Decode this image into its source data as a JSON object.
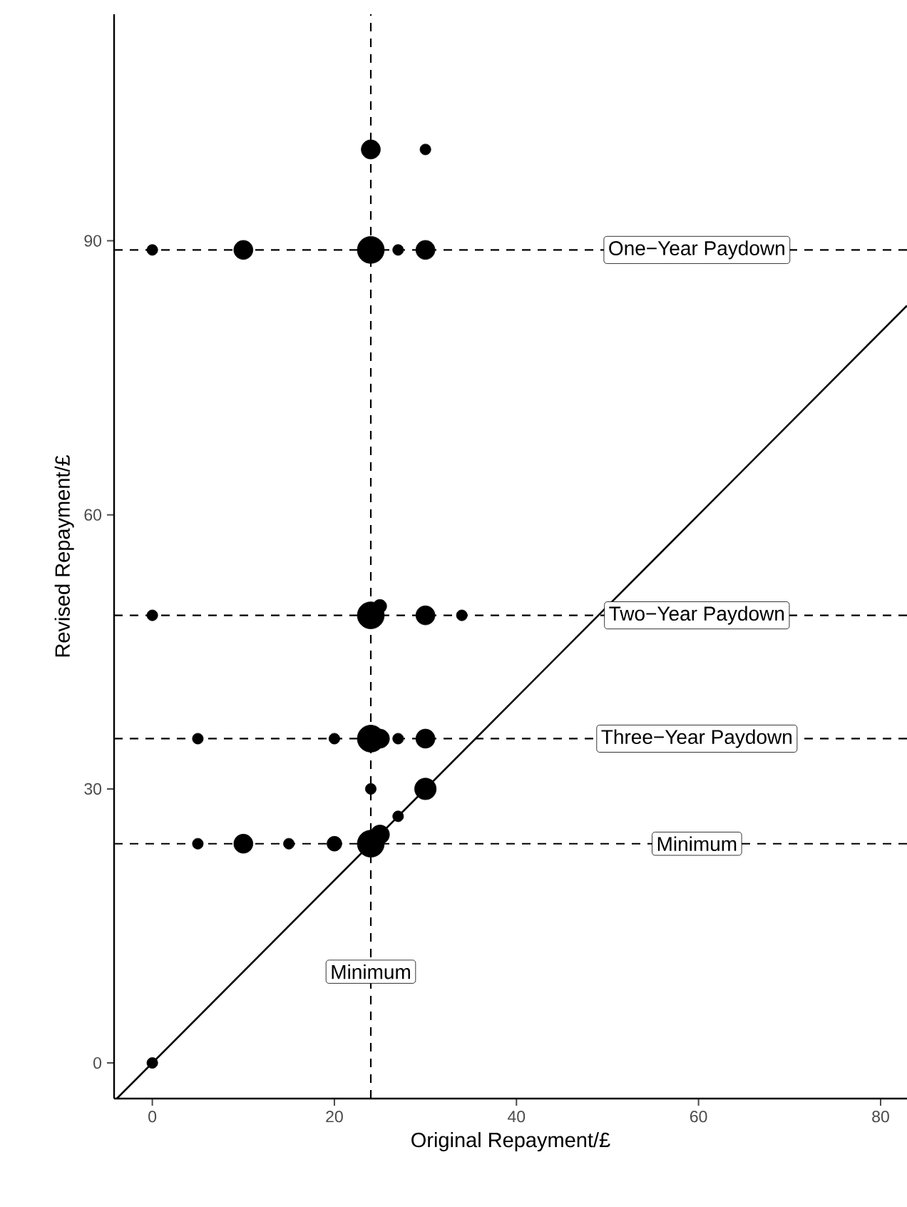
{
  "chart_data": {
    "type": "bubble",
    "xlabel": "Original Repayment/£",
    "ylabel": "Revised Repayment/£",
    "xlim": [
      -4.2,
      82.9
    ],
    "ylim": [
      -3.9,
      114.8
    ],
    "xticks": [
      0,
      20,
      40,
      60,
      80
    ],
    "yticks": [
      0,
      30,
      60,
      90
    ],
    "series": [
      {
        "marker": "circle",
        "color": "#000000",
        "x": [
          24,
          30,
          0,
          10,
          24,
          27,
          30,
          0,
          24,
          25,
          30,
          34,
          5,
          20,
          24,
          25,
          27,
          30,
          24,
          30,
          5,
          10,
          15,
          20,
          24,
          25,
          27,
          0
        ],
        "values": [
          100,
          100,
          89,
          89,
          89,
          89,
          89,
          49,
          49,
          50,
          49,
          49,
          35.5,
          35.5,
          35.5,
          35.5,
          35.5,
          35.5,
          30,
          30,
          24,
          24,
          24,
          24,
          24,
          25,
          27,
          0
        ],
        "sizes": [
          0.5,
          0.16,
          0.16,
          0.5,
          1,
          0.16,
          0.5,
          0.16,
          1,
          0.25,
          0.5,
          0.16,
          0.16,
          0.16,
          1,
          0.5,
          0.16,
          0.5,
          0.16,
          0.64,
          0.16,
          0.5,
          0.16,
          0.3,
          1,
          0.5,
          0.16,
          0.16
        ]
      },
      {
        "type": "line",
        "color": "#000000",
        "line_style": "solid",
        "x": [
          -3.9,
          82.9
        ],
        "values": [
          -3.9,
          82.9
        ]
      }
    ],
    "ref_lines": [
      {
        "axis": "x",
        "value": 24,
        "label": "Minimum",
        "line_style": "dashed"
      },
      {
        "axis": "y",
        "value": 89,
        "label": "One−Year Paydown",
        "line_style": "dashed"
      },
      {
        "axis": "y",
        "value": 49,
        "label": "Two−Year Paydown",
        "line_style": "dashed"
      },
      {
        "axis": "y",
        "value": 35.5,
        "label": "Three−Year Paydown",
        "line_style": "dashed"
      },
      {
        "axis": "y",
        "value": 24,
        "label": "Minimum",
        "line_style": "dashed"
      }
    ]
  }
}
